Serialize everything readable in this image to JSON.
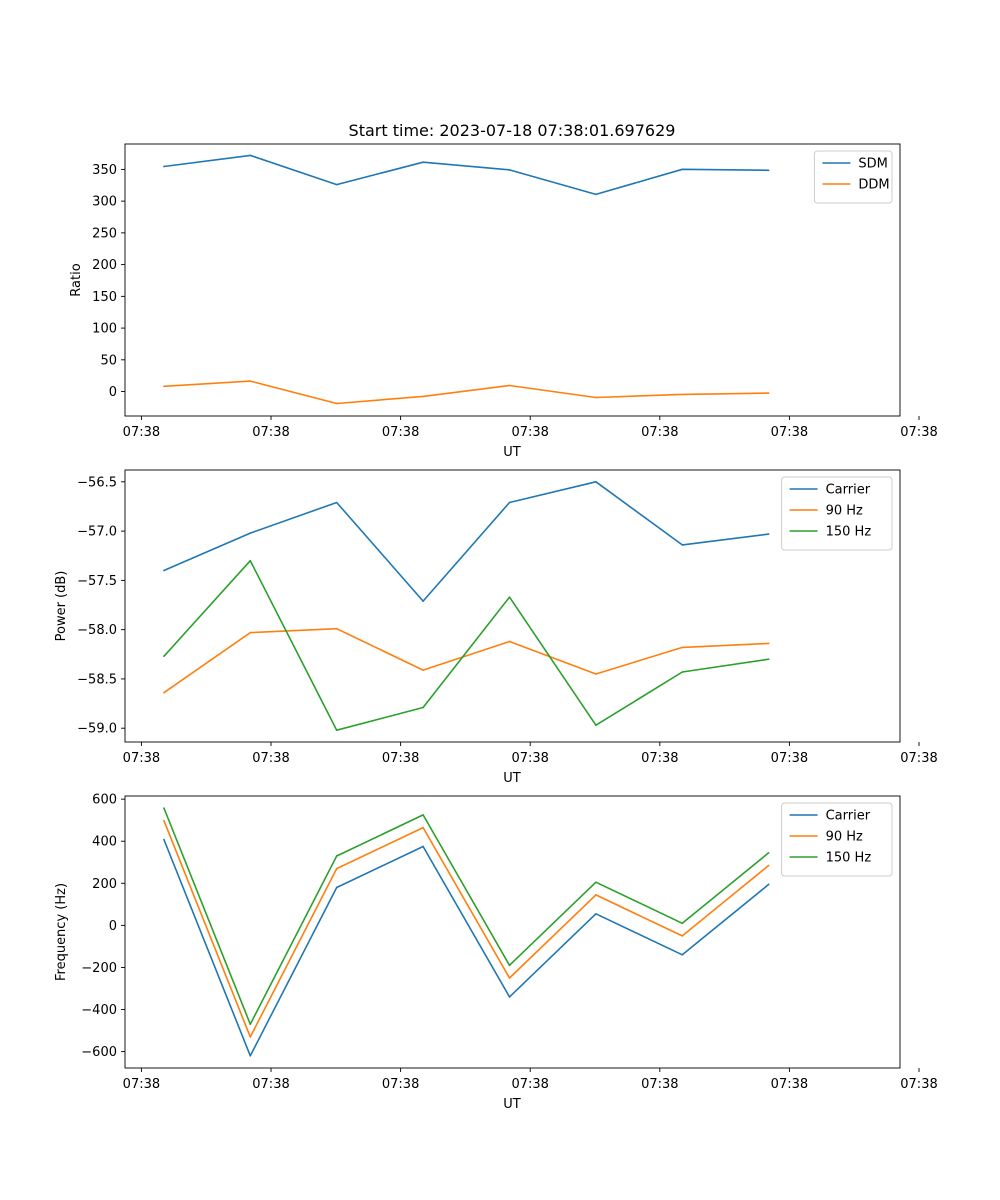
{
  "figure_title": "Start time: 2023-07-18 07:38:01.697629",
  "colors": {
    "blue": "#1f77b4",
    "orange": "#ff7f0e",
    "green": "#2ca02c"
  },
  "chart_data": [
    {
      "type": "line",
      "title": "Start time: 2023-07-18 07:38:01.697629",
      "xlabel": "UT",
      "ylabel": "Ratio",
      "x": [
        1,
        2,
        3,
        4,
        5,
        6,
        7,
        8
      ],
      "xlim": [
        0.55,
        9.52
      ],
      "xticks": [
        0.75,
        2.25,
        3.75,
        5.25,
        6.75,
        8.25,
        9.75
      ],
      "xtick_labels": [
        "07:38",
        "07:38",
        "07:38",
        "07:38",
        "07:38",
        "07:38",
        "07:38"
      ],
      "xtick_positions": [
        0.74,
        2.24,
        3.74,
        5.24,
        6.74,
        8.24,
        9.74
      ],
      "ylim": [
        -38.5,
        390
      ],
      "yticks": [
        0,
        50,
        100,
        150,
        200,
        250,
        300,
        350
      ],
      "ytick_labels": [
        "0",
        "50",
        "100",
        "150",
        "200",
        "250",
        "300",
        "350"
      ],
      "legend_position": "top-right",
      "series": [
        {
          "name": "SDM",
          "color_key": "blue",
          "values": [
            354.6,
            372.1,
            326.1,
            361.4,
            349.2,
            310.6,
            350.1,
            348.5
          ]
        },
        {
          "name": "DDM",
          "color_key": "orange",
          "values": [
            8.3,
            16.5,
            -18.8,
            -7.7,
            9.6,
            -9.3,
            -4.5,
            -2.5
          ]
        }
      ]
    },
    {
      "type": "line",
      "xlabel": "UT",
      "ylabel": "Power (dB)",
      "x": [
        1,
        2,
        3,
        4,
        5,
        6,
        7,
        8
      ],
      "xlim": [
        0.55,
        9.52
      ],
      "xtick_labels": [
        "07:38",
        "07:38",
        "07:38",
        "07:38",
        "07:38",
        "07:38",
        "07:38"
      ],
      "xtick_positions": [
        0.74,
        2.24,
        3.74,
        5.24,
        6.74,
        8.24,
        9.74
      ],
      "ylim": [
        -59.14,
        -56.38
      ],
      "yticks": [
        -59.0,
        -58.5,
        -58.0,
        -57.5,
        -57.0,
        -56.5
      ],
      "ytick_labels": [
        "−59.0",
        "−58.5",
        "−58.0",
        "−57.5",
        "−57.0",
        "−56.5"
      ],
      "legend_position": "top-right",
      "series": [
        {
          "name": "Carrier",
          "color_key": "blue",
          "values": [
            -57.4,
            -57.02,
            -56.71,
            -57.71,
            -56.71,
            -56.5,
            -57.14,
            -57.03
          ]
        },
        {
          "name": "90 Hz",
          "color_key": "orange",
          "values": [
            -58.64,
            -58.03,
            -57.99,
            -58.41,
            -58.12,
            -58.45,
            -58.18,
            -58.14
          ]
        },
        {
          "name": "150 Hz",
          "color_key": "green",
          "values": [
            -58.27,
            -57.3,
            -59.02,
            -58.79,
            -57.67,
            -58.97,
            -58.43,
            -58.3
          ]
        }
      ]
    },
    {
      "type": "line",
      "xlabel": "UT",
      "ylabel": "Frequency (Hz)",
      "x": [
        1,
        2,
        3,
        4,
        5,
        6,
        7,
        8
      ],
      "xlim": [
        0.55,
        9.52
      ],
      "xtick_labels": [
        "07:38",
        "07:38",
        "07:38",
        "07:38",
        "07:38",
        "07:38",
        "07:38"
      ],
      "xtick_positions": [
        0.74,
        2.24,
        3.74,
        5.24,
        6.74,
        8.24,
        9.74
      ],
      "ylim": [
        -678,
        615
      ],
      "yticks": [
        -600,
        -400,
        -200,
        0,
        200,
        400,
        600
      ],
      "ytick_labels": [
        "−600",
        "−400",
        "−200",
        "0",
        "200",
        "400",
        "600"
      ],
      "legend_position": "top-right",
      "series": [
        {
          "name": "Carrier",
          "color_key": "blue",
          "values": [
            408,
            -620,
            180,
            375,
            -340,
            55,
            -140,
            195
          ]
        },
        {
          "name": "90 Hz",
          "color_key": "orange",
          "values": [
            498,
            -530,
            270,
            465,
            -250,
            145,
            -50,
            285
          ]
        },
        {
          "name": "150 Hz",
          "color_key": "green",
          "values": [
            558,
            -470,
            330,
            525,
            -190,
            205,
            10,
            345
          ]
        }
      ]
    }
  ]
}
